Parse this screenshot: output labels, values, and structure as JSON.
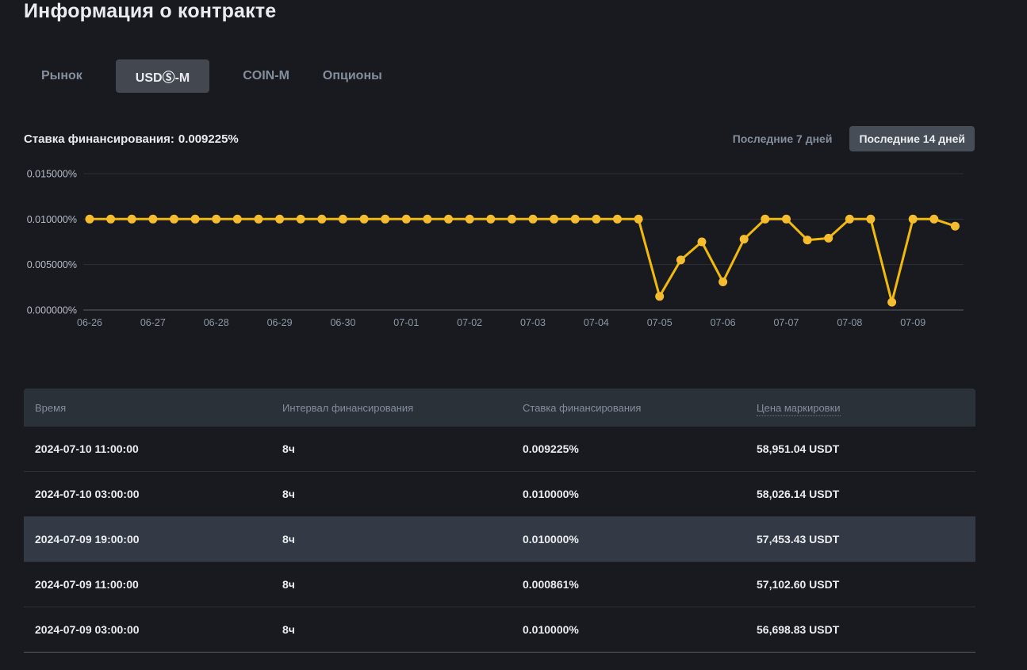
{
  "page": {
    "title": "Информация о контракте"
  },
  "tabs": [
    {
      "label": "Рынок",
      "active": false
    },
    {
      "label": "USDⓈ-M",
      "active": true
    },
    {
      "label": "COIN-M",
      "active": false
    },
    {
      "label": "Опционы",
      "active": false
    }
  ],
  "funding": {
    "label": "Ставка финансирования:",
    "value": "0.009225%"
  },
  "range_toggle": {
    "last7_label": "Последние 7 дней",
    "last14_label": "Последние 14 дней",
    "selected": "last14"
  },
  "chart_data": {
    "type": "line",
    "series_name": "Ставка финансирования",
    "line_color": "#F0B90B",
    "dot_color": "#F5BC2F",
    "ylim": [
      0,
      0.015
    ],
    "y_tick_values": [
      0.015,
      0.01,
      0.005,
      0.0
    ],
    "y_tick_labels": [
      "0.015000%",
      "0.010000%",
      "0.005000%",
      "0.000000%"
    ],
    "x_tick_labels": [
      "06-26",
      "06-27",
      "06-28",
      "06-29",
      "06-30",
      "07-01",
      "07-02",
      "07-03",
      "07-04",
      "07-05",
      "07-06",
      "07-07",
      "07-08",
      "07-09"
    ],
    "points_per_tick": 3,
    "grid": true,
    "legend": "none",
    "values_percent": [
      0.01,
      0.01,
      0.01,
      0.01,
      0.01,
      0.01,
      0.01,
      0.01,
      0.01,
      0.01,
      0.01,
      0.01,
      0.01,
      0.01,
      0.01,
      0.01,
      0.01,
      0.01,
      0.01,
      0.01,
      0.01,
      0.01,
      0.01,
      0.01,
      0.01,
      0.01,
      0.01,
      0.0015,
      0.0055,
      0.0075,
      0.0031,
      0.0078,
      0.01,
      0.01,
      0.0077,
      0.0079,
      0.01,
      0.01,
      0.000861,
      0.01,
      0.01,
      0.009225
    ]
  },
  "table": {
    "headers": [
      "Время",
      "Интервал финансирования",
      "Ставка финансирования",
      "Цена маркировки"
    ],
    "highlighted_row": 2,
    "rows": [
      {
        "time": "2024-07-10 11:00:00",
        "interval": "8ч",
        "rate": "0.009225%",
        "mark_price": "58,951.04 USDT"
      },
      {
        "time": "2024-07-10 03:00:00",
        "interval": "8ч",
        "rate": "0.010000%",
        "mark_price": "58,026.14 USDT"
      },
      {
        "time": "2024-07-09 19:00:00",
        "interval": "8ч",
        "rate": "0.010000%",
        "mark_price": "57,453.43 USDT"
      },
      {
        "time": "2024-07-09 11:00:00",
        "interval": "8ч",
        "rate": "0.000861%",
        "mark_price": "57,102.60 USDT"
      },
      {
        "time": "2024-07-09 03:00:00",
        "interval": "8ч",
        "rate": "0.010000%",
        "mark_price": "56,698.83 USDT"
      }
    ]
  },
  "colors": {
    "background": "#181A20",
    "accent_yellow": "#F0B90B",
    "text_primary": "#EAECEF",
    "text_secondary": "#848E9C",
    "header_bg": "#2B3139",
    "button_bg": "#474D57",
    "row_highlight": "#333A45"
  }
}
